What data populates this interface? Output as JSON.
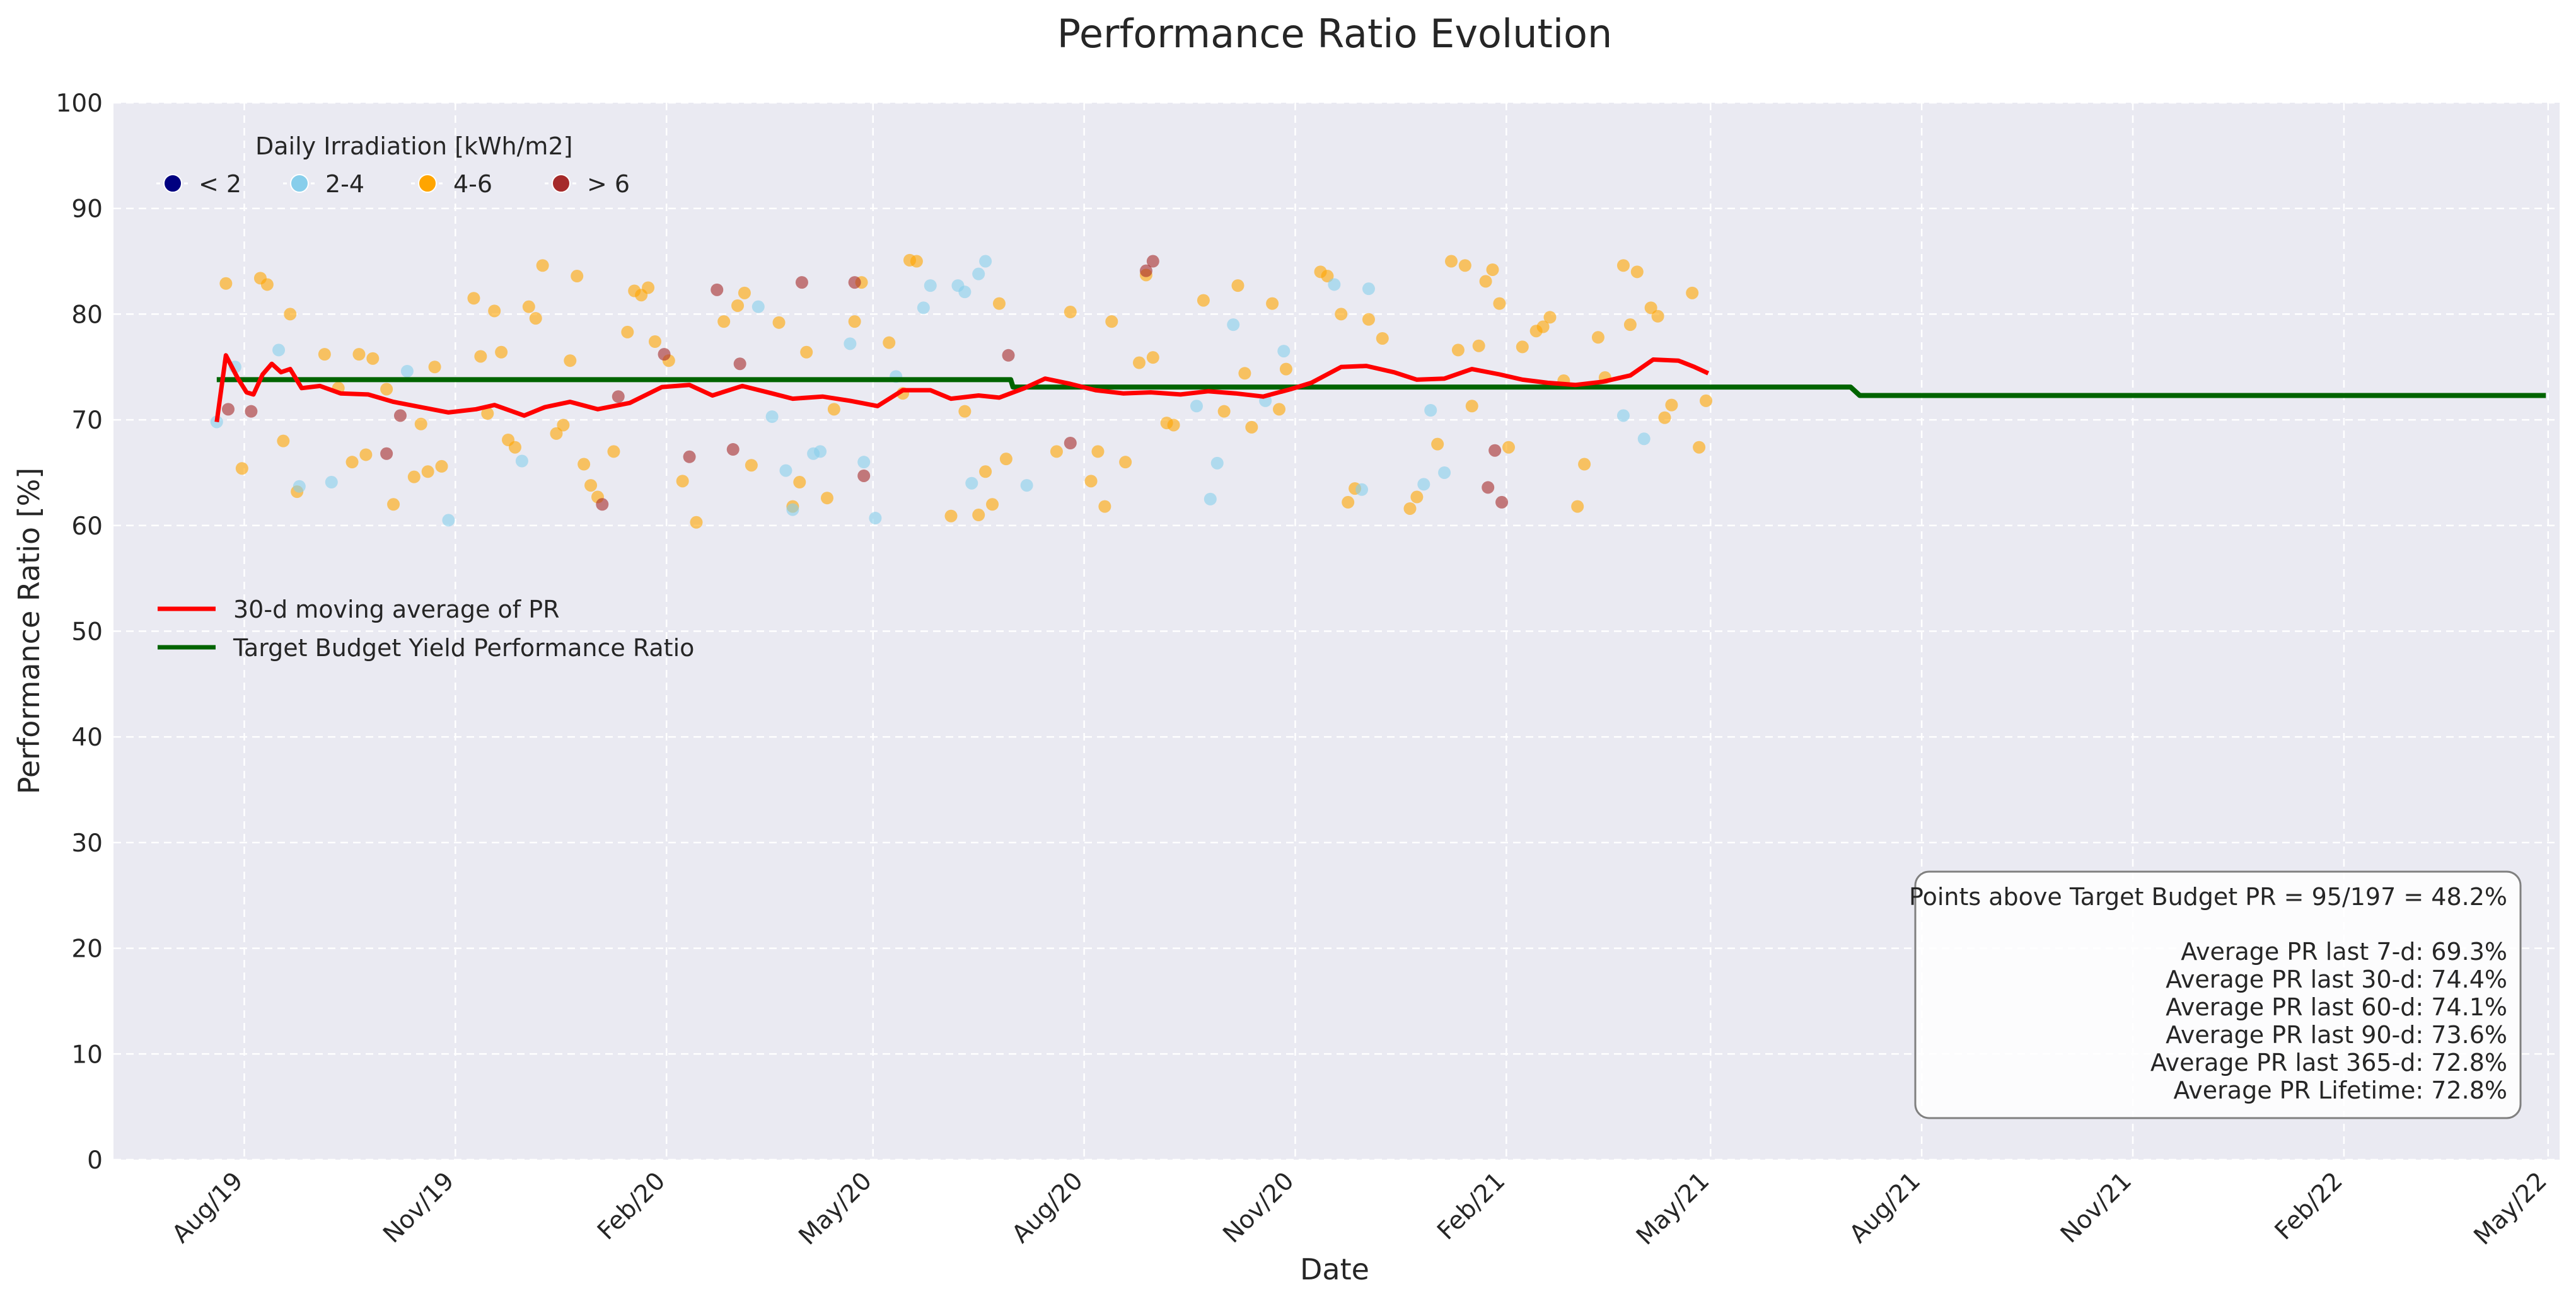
{
  "chart_data": {
    "type": "scatter",
    "title": "Performance Ratio Evolution",
    "xlabel": "Date",
    "ylabel": "Performance Ratio [%]",
    "xlim": [
      "2019-06-05",
      "2022-05-06"
    ],
    "ylim": [
      0,
      100
    ],
    "y_ticks": [
      0,
      10,
      20,
      30,
      40,
      50,
      60,
      70,
      80,
      90,
      100
    ],
    "x_ticks": [
      {
        "date": "2019-08-01",
        "label": "Aug/19"
      },
      {
        "date": "2019-11-01",
        "label": "Nov/19"
      },
      {
        "date": "2020-02-01",
        "label": "Feb/20"
      },
      {
        "date": "2020-05-01",
        "label": "May/20"
      },
      {
        "date": "2020-08-01",
        "label": "Aug/20"
      },
      {
        "date": "2020-11-01",
        "label": "Nov/20"
      },
      {
        "date": "2021-02-01",
        "label": "Feb/21"
      },
      {
        "date": "2021-05-01",
        "label": "May/21"
      },
      {
        "date": "2021-08-01",
        "label": "Aug/21"
      },
      {
        "date": "2021-11-01",
        "label": "Nov/21"
      },
      {
        "date": "2022-02-01",
        "label": "Feb/22"
      },
      {
        "date": "2022-05-01",
        "label": "May/22"
      }
    ],
    "grid": true,
    "background": "#eaeaf2",
    "scatter_legend": {
      "title": "Daily Irradiation [kWh/m2]",
      "placement": "top-left",
      "classes": [
        {
          "label": "< 2",
          "color": "#000080"
        },
        {
          "label": "2-4",
          "color": "#87ceeb"
        },
        {
          "label": "4-6",
          "color": "#ffa500"
        },
        {
          "label": "> 6",
          "color": "#a52a2a"
        }
      ]
    },
    "line_legend": {
      "placement": "center-left",
      "entries": [
        {
          "label": "30-d moving average of PR",
          "color": "#ff0000"
        },
        {
          "label": "Target Budget Yield Performance Ratio",
          "color": "#006400"
        }
      ]
    },
    "scatter_series": [
      {
        "class": "4-6",
        "points": [
          [
            "2019-07-24",
            82.9
          ],
          [
            "2019-07-31",
            65.4
          ],
          [
            "2019-08-08",
            83.4
          ],
          [
            "2019-08-11",
            82.8
          ],
          [
            "2019-08-18",
            68.0
          ],
          [
            "2019-08-21",
            80.0
          ],
          [
            "2019-08-24",
            63.2
          ],
          [
            "2019-09-05",
            76.2
          ],
          [
            "2019-09-11",
            73.0
          ],
          [
            "2019-09-17",
            66.0
          ],
          [
            "2019-09-20",
            76.2
          ],
          [
            "2019-09-23",
            66.7
          ],
          [
            "2019-09-26",
            75.8
          ],
          [
            "2019-10-02",
            72.9
          ],
          [
            "2019-10-05",
            62.0
          ],
          [
            "2019-10-14",
            64.6
          ],
          [
            "2019-10-17",
            69.6
          ],
          [
            "2019-10-20",
            65.1
          ],
          [
            "2019-10-23",
            75.0
          ],
          [
            "2019-10-26",
            65.6
          ],
          [
            "2019-11-09",
            81.5
          ],
          [
            "2019-11-12",
            76.0
          ],
          [
            "2019-11-15",
            70.6
          ],
          [
            "2019-11-18",
            80.3
          ],
          [
            "2019-11-21",
            76.4
          ],
          [
            "2019-11-24",
            68.1
          ],
          [
            "2019-11-27",
            67.4
          ],
          [
            "2019-12-03",
            80.7
          ],
          [
            "2019-12-06",
            79.6
          ],
          [
            "2019-12-09",
            84.6
          ],
          [
            "2019-12-15",
            68.7
          ],
          [
            "2019-12-18",
            69.5
          ],
          [
            "2019-12-21",
            75.6
          ],
          [
            "2019-12-24",
            83.6
          ],
          [
            "2019-12-27",
            65.8
          ],
          [
            "2019-12-30",
            63.8
          ],
          [
            "2020-01-02",
            62.7
          ],
          [
            "2020-01-09",
            67.0
          ],
          [
            "2020-01-15",
            78.3
          ],
          [
            "2020-01-18",
            82.2
          ],
          [
            "2020-01-21",
            81.8
          ],
          [
            "2020-01-24",
            82.5
          ],
          [
            "2020-01-27",
            77.4
          ],
          [
            "2020-02-02",
            75.6
          ],
          [
            "2020-02-08",
            64.2
          ],
          [
            "2020-02-14",
            60.3
          ],
          [
            "2020-02-26",
            79.3
          ],
          [
            "2020-03-03",
            80.8
          ],
          [
            "2020-03-06",
            82.0
          ],
          [
            "2020-03-09",
            65.7
          ],
          [
            "2020-03-21",
            79.2
          ],
          [
            "2020-03-27",
            61.8
          ],
          [
            "2020-03-30",
            64.1
          ],
          [
            "2020-04-02",
            76.4
          ],
          [
            "2020-04-11",
            62.6
          ],
          [
            "2020-04-14",
            71.0
          ],
          [
            "2020-04-23",
            79.3
          ],
          [
            "2020-04-26",
            83.0
          ],
          [
            "2020-05-08",
            77.3
          ],
          [
            "2020-05-14",
            72.5
          ],
          [
            "2020-05-17",
            85.1
          ],
          [
            "2020-05-20",
            85.0
          ],
          [
            "2020-06-04",
            60.9
          ],
          [
            "2020-06-10",
            70.8
          ],
          [
            "2020-06-16",
            61.0
          ],
          [
            "2020-06-19",
            65.1
          ],
          [
            "2020-06-22",
            62.0
          ],
          [
            "2020-06-25",
            81.0
          ],
          [
            "2020-06-28",
            66.3
          ],
          [
            "2020-07-20",
            67.0
          ],
          [
            "2020-07-26",
            80.2
          ],
          [
            "2020-08-04",
            64.2
          ],
          [
            "2020-08-07",
            67.0
          ],
          [
            "2020-08-10",
            61.8
          ],
          [
            "2020-08-13",
            79.3
          ],
          [
            "2020-08-19",
            66.0
          ],
          [
            "2020-08-25",
            75.4
          ],
          [
            "2020-08-28",
            83.7
          ],
          [
            "2020-08-31",
            75.9
          ],
          [
            "2020-09-06",
            69.7
          ],
          [
            "2020-09-09",
            69.5
          ],
          [
            "2020-09-22",
            81.3
          ],
          [
            "2020-10-01",
            70.8
          ],
          [
            "2020-10-07",
            82.7
          ],
          [
            "2020-10-10",
            74.4
          ],
          [
            "2020-10-13",
            69.3
          ],
          [
            "2020-10-22",
            81.0
          ],
          [
            "2020-10-25",
            71.0
          ],
          [
            "2020-10-28",
            74.8
          ],
          [
            "2020-11-12",
            84.0
          ],
          [
            "2020-11-15",
            83.6
          ],
          [
            "2020-11-21",
            80.0
          ],
          [
            "2020-11-24",
            62.2
          ],
          [
            "2020-11-27",
            63.5
          ],
          [
            "2020-12-03",
            79.5
          ],
          [
            "2020-12-09",
            77.7
          ],
          [
            "2020-12-21",
            61.6
          ],
          [
            "2020-12-24",
            62.7
          ],
          [
            "2021-01-02",
            67.7
          ],
          [
            "2021-01-08",
            85.0
          ],
          [
            "2021-01-11",
            76.6
          ],
          [
            "2021-01-14",
            84.6
          ],
          [
            "2021-01-17",
            71.3
          ],
          [
            "2021-01-20",
            77.0
          ],
          [
            "2021-01-23",
            83.1
          ],
          [
            "2021-01-26",
            84.2
          ],
          [
            "2021-01-29",
            81.0
          ],
          [
            "2021-02-02",
            67.4
          ],
          [
            "2021-02-08",
            76.9
          ],
          [
            "2021-02-14",
            78.4
          ],
          [
            "2021-02-17",
            78.8
          ],
          [
            "2021-02-20",
            79.7
          ],
          [
            "2021-02-26",
            73.7
          ],
          [
            "2021-03-04",
            61.8
          ],
          [
            "2021-03-07",
            65.8
          ],
          [
            "2021-03-13",
            77.8
          ],
          [
            "2021-03-16",
            74.0
          ],
          [
            "2021-03-24",
            84.6
          ],
          [
            "2021-03-27",
            79.0
          ],
          [
            "2021-03-30",
            84.0
          ],
          [
            "2021-04-05",
            80.6
          ],
          [
            "2021-04-08",
            79.8
          ],
          [
            "2021-04-11",
            70.2
          ],
          [
            "2021-04-14",
            71.4
          ],
          [
            "2021-04-23",
            82.0
          ],
          [
            "2021-04-26",
            67.4
          ],
          [
            "2021-04-29",
            71.8
          ]
        ]
      },
      {
        "class": "2-4",
        "points": [
          [
            "2019-07-20",
            69.8
          ],
          [
            "2019-07-28",
            75.0
          ],
          [
            "2019-08-16",
            76.6
          ],
          [
            "2019-08-25",
            63.7
          ],
          [
            "2019-09-08",
            64.1
          ],
          [
            "2019-10-11",
            74.6
          ],
          [
            "2019-10-29",
            60.5
          ],
          [
            "2019-11-30",
            66.1
          ],
          [
            "2020-03-12",
            80.7
          ],
          [
            "2020-03-18",
            70.3
          ],
          [
            "2020-03-24",
            65.2
          ],
          [
            "2020-03-27",
            61.5
          ],
          [
            "2020-04-05",
            66.8
          ],
          [
            "2020-04-08",
            67.0
          ],
          [
            "2020-04-21",
            77.2
          ],
          [
            "2020-04-27",
            66.0
          ],
          [
            "2020-05-02",
            60.7
          ],
          [
            "2020-05-11",
            74.1
          ],
          [
            "2020-05-23",
            80.6
          ],
          [
            "2020-05-26",
            82.7
          ],
          [
            "2020-06-07",
            82.7
          ],
          [
            "2020-06-10",
            82.1
          ],
          [
            "2020-06-13",
            64.0
          ],
          [
            "2020-06-16",
            83.8
          ],
          [
            "2020-06-19",
            85.0
          ],
          [
            "2020-07-07",
            63.8
          ],
          [
            "2020-09-19",
            71.3
          ],
          [
            "2020-09-25",
            62.5
          ],
          [
            "2020-09-28",
            65.9
          ],
          [
            "2020-10-05",
            79.0
          ],
          [
            "2020-10-19",
            71.8
          ],
          [
            "2020-10-27",
            76.5
          ],
          [
            "2020-11-18",
            82.8
          ],
          [
            "2020-11-30",
            63.4
          ],
          [
            "2020-12-03",
            82.4
          ],
          [
            "2020-12-27",
            63.9
          ],
          [
            "2020-12-30",
            70.9
          ],
          [
            "2021-01-05",
            65.0
          ],
          [
            "2021-03-24",
            70.4
          ],
          [
            "2021-04-02",
            68.2
          ]
        ]
      },
      {
        "class": "> 6",
        "points": [
          [
            "2019-07-25",
            71.0
          ],
          [
            "2019-08-04",
            70.8
          ],
          [
            "2019-10-02",
            66.8
          ],
          [
            "2019-10-08",
            70.4
          ],
          [
            "2020-01-04",
            62.0
          ],
          [
            "2020-01-11",
            72.2
          ],
          [
            "2020-01-31",
            76.2
          ],
          [
            "2020-02-11",
            66.5
          ],
          [
            "2020-02-23",
            82.3
          ],
          [
            "2020-03-01",
            67.2
          ],
          [
            "2020-03-04",
            75.3
          ],
          [
            "2020-03-31",
            83.0
          ],
          [
            "2020-04-23",
            83.0
          ],
          [
            "2020-04-27",
            64.7
          ],
          [
            "2020-06-29",
            76.1
          ],
          [
            "2020-07-26",
            67.8
          ],
          [
            "2020-08-28",
            84.1
          ],
          [
            "2020-08-31",
            85.0
          ],
          [
            "2021-01-24",
            63.6
          ],
          [
            "2021-01-27",
            67.1
          ],
          [
            "2021-01-30",
            62.2
          ]
        ]
      }
    ],
    "moving_average": {
      "label": "30-d moving average of PR",
      "points": [
        [
          "2019-07-20",
          69.8
        ],
        [
          "2019-07-24",
          76.1
        ],
        [
          "2019-07-29",
          74.0
        ],
        [
          "2019-08-02",
          72.6
        ],
        [
          "2019-08-05",
          72.4
        ],
        [
          "2019-08-09",
          74.3
        ],
        [
          "2019-08-13",
          75.3
        ],
        [
          "2019-08-17",
          74.5
        ],
        [
          "2019-08-21",
          74.8
        ],
        [
          "2019-08-26",
          73.0
        ],
        [
          "2019-09-03",
          73.2
        ],
        [
          "2019-09-12",
          72.5
        ],
        [
          "2019-09-24",
          72.4
        ],
        [
          "2019-10-05",
          71.7
        ],
        [
          "2019-10-17",
          71.2
        ],
        [
          "2019-10-29",
          70.7
        ],
        [
          "2019-11-10",
          71.0
        ],
        [
          "2019-11-18",
          71.4
        ],
        [
          "2019-12-01",
          70.4
        ],
        [
          "2019-12-10",
          71.2
        ],
        [
          "2019-12-21",
          71.7
        ],
        [
          "2020-01-02",
          71.0
        ],
        [
          "2020-01-16",
          71.6
        ],
        [
          "2020-01-30",
          73.1
        ],
        [
          "2020-02-11",
          73.3
        ],
        [
          "2020-02-21",
          72.3
        ],
        [
          "2020-03-05",
          73.2
        ],
        [
          "2020-03-18",
          72.5
        ],
        [
          "2020-03-27",
          72.0
        ],
        [
          "2020-04-09",
          72.2
        ],
        [
          "2020-04-21",
          71.8
        ],
        [
          "2020-05-03",
          71.3
        ],
        [
          "2020-05-14",
          72.8
        ],
        [
          "2020-05-26",
          72.8
        ],
        [
          "2020-06-04",
          72.0
        ],
        [
          "2020-06-16",
          72.3
        ],
        [
          "2020-06-25",
          72.1
        ],
        [
          "2020-07-06",
          73.0
        ],
        [
          "2020-07-15",
          73.9
        ],
        [
          "2020-07-26",
          73.4
        ],
        [
          "2020-08-06",
          72.8
        ],
        [
          "2020-08-18",
          72.5
        ],
        [
          "2020-08-30",
          72.6
        ],
        [
          "2020-09-12",
          72.4
        ],
        [
          "2020-09-24",
          72.7
        ],
        [
          "2020-10-06",
          72.5
        ],
        [
          "2020-10-18",
          72.2
        ],
        [
          "2020-10-30",
          72.9
        ],
        [
          "2020-11-08",
          73.5
        ],
        [
          "2020-11-21",
          75.0
        ],
        [
          "2020-12-02",
          75.1
        ],
        [
          "2020-12-14",
          74.5
        ],
        [
          "2020-12-24",
          73.8
        ],
        [
          "2021-01-05",
          73.9
        ],
        [
          "2021-01-17",
          74.8
        ],
        [
          "2021-01-29",
          74.3
        ],
        [
          "2021-02-08",
          73.8
        ],
        [
          "2021-02-19",
          73.5
        ],
        [
          "2021-03-03",
          73.3
        ],
        [
          "2021-03-15",
          73.6
        ],
        [
          "2021-03-27",
          74.2
        ],
        [
          "2021-04-06",
          75.7
        ],
        [
          "2021-04-17",
          75.6
        ],
        [
          "2021-04-24",
          75.0
        ],
        [
          "2021-04-30",
          74.4
        ]
      ]
    },
    "target_budget": {
      "label": "Target Budget Yield Performance Ratio",
      "points": [
        [
          "2019-07-20",
          73.8
        ],
        [
          "2020-06-30",
          73.8
        ],
        [
          "2020-07-01",
          73.1
        ],
        [
          "2021-07-01",
          73.1
        ],
        [
          "2021-07-05",
          72.3
        ],
        [
          "2022-04-30",
          72.3
        ]
      ]
    },
    "stats_box": {
      "placement": "bottom-right",
      "lines": [
        "Points above Target Budget PR = 95/197 = 48.2%",
        "",
        "Average PR last 7-d: 69.3%",
        "Average PR last 30-d: 74.4%",
        "Average PR last 60-d: 74.1%",
        "Average PR last 90-d: 73.6%",
        "Average PR last 365-d: 72.8%",
        "Average PR Lifetime: 72.8%"
      ]
    }
  }
}
